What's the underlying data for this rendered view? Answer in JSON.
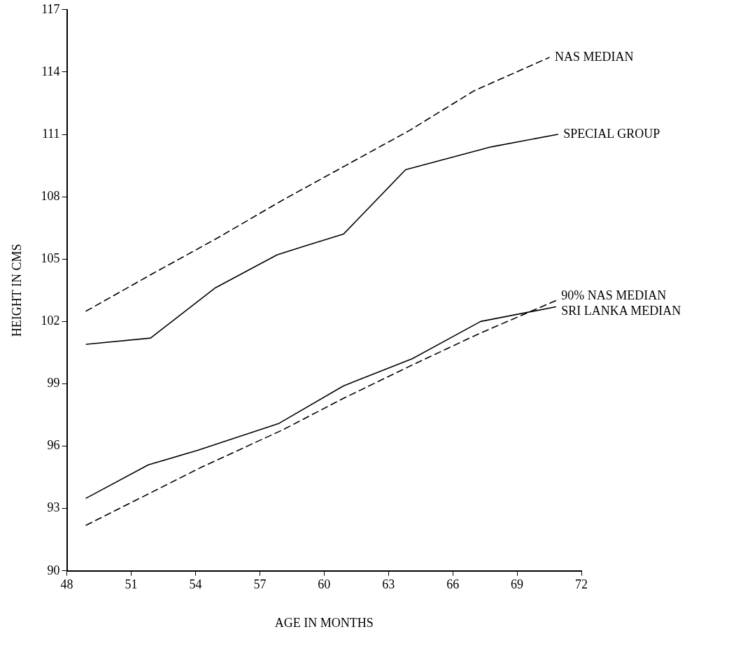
{
  "chart_data": {
    "type": "line",
    "xlabel": "AGE IN MONTHS",
    "ylabel": "HEIGHT IN CMS",
    "xlim": [
      48,
      72
    ],
    "xticks": [
      48,
      51,
      54,
      57,
      60,
      63,
      66,
      69,
      72
    ],
    "ylim": [
      90,
      117
    ],
    "yticks": [
      90,
      93,
      96,
      99,
      102,
      105,
      108,
      111,
      114,
      117
    ],
    "grid": false,
    "legend": false,
    "marker": "none",
    "series": [
      {
        "name": "NAS MEDIAN",
        "color": "#000000",
        "line_style": "dashed",
        "x": [
          48.9,
          52,
          55,
          58,
          61,
          64,
          67,
          70.5
        ],
        "values": [
          102.5,
          104.3,
          106.0,
          107.8,
          109.5,
          111.2,
          113.1,
          114.7
        ]
      },
      {
        "name": "SPECIAL GROUP",
        "color": "#000000",
        "line_style": "solid",
        "x": [
          48.9,
          51.9,
          54.9,
          57.8,
          59,
          60.9,
          63.8,
          67.8,
          70.9
        ],
        "values": [
          100.9,
          101.2,
          103.6,
          105.2,
          105.6,
          106.2,
          109.3,
          110.4,
          111.0
        ]
      },
      {
        "name": "90% NAS MEDIAN",
        "color": "#000000",
        "line_style": "dashed",
        "x": [
          48.9,
          51.8,
          54.3,
          58.1,
          60.9,
          64.1,
          67.2,
          70.8
        ],
        "values": [
          92.2,
          93.7,
          95.0,
          96.8,
          98.3,
          99.9,
          101.4,
          103.0
        ]
      },
      {
        "name": "SRI LANKA MEDIAN",
        "color": "#000000",
        "line_style": "solid",
        "x": [
          48.9,
          51.8,
          54.1,
          57.9,
          60.9,
          64.1,
          67.3,
          70.8
        ],
        "values": [
          93.5,
          95.1,
          95.8,
          97.1,
          98.9,
          100.2,
          102.0,
          102.7
        ]
      }
    ]
  }
}
